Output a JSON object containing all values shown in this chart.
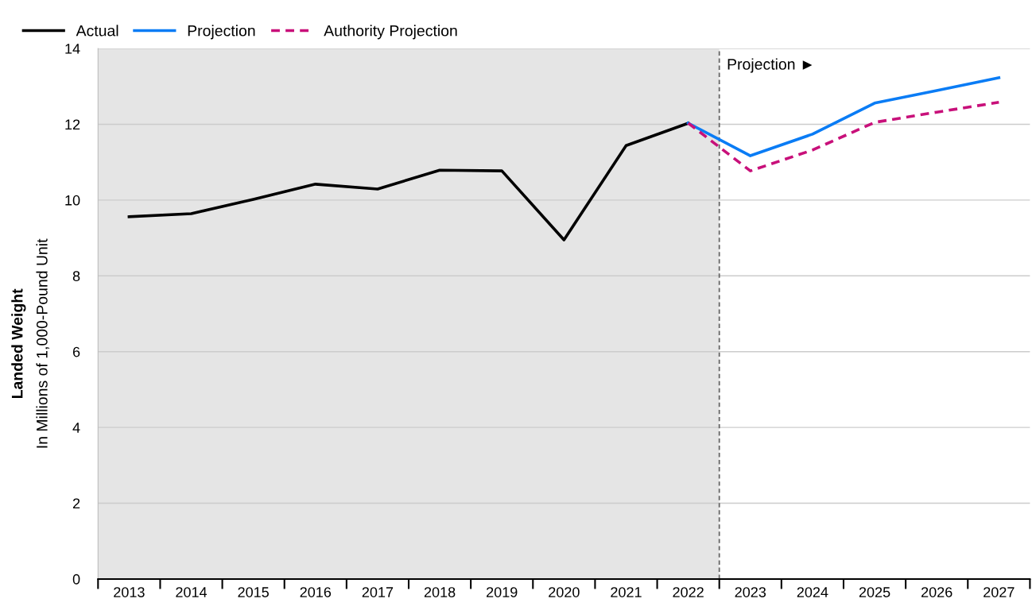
{
  "chart_data": {
    "type": "line",
    "ylabel": "Landed Weight\nIn Millions of 1,000-Pound Unit",
    "x": [
      2013,
      2014,
      2015,
      2016,
      2017,
      2018,
      2019,
      2020,
      2021,
      2022,
      2023,
      2024,
      2025,
      2026,
      2027
    ],
    "series": [
      {
        "name": "Actual",
        "color": "#000000",
        "values": [
          9.56,
          9.64,
          10.02,
          10.42,
          10.29,
          10.79,
          10.77,
          8.95,
          11.44,
          12.03,
          null,
          null,
          null,
          null,
          null
        ]
      },
      {
        "name": "Projection",
        "color": "#0a7cf5",
        "values": [
          null,
          null,
          null,
          null,
          null,
          null,
          null,
          null,
          null,
          12.03,
          11.17,
          11.74,
          12.56,
          12.89,
          13.23
        ]
      },
      {
        "name": "Authority Projection",
        "color": "#c8107a",
        "line_style": "dashed",
        "values": [
          null,
          null,
          null,
          null,
          null,
          null,
          null,
          null,
          null,
          12.03,
          10.77,
          11.32,
          12.05,
          12.32,
          12.58
        ]
      }
    ],
    "xlim": [
      2012.5,
      2027.5
    ],
    "xticks": [
      {
        "value": 2012.5,
        "label": null
      },
      2013,
      {
        "value": 2013.5,
        "label": null
      },
      2014,
      {
        "value": 2014.5,
        "label": null
      },
      2015,
      {
        "value": 2015.5,
        "label": null
      },
      2016,
      {
        "value": 2016.5,
        "label": null
      },
      2017,
      {
        "value": 2017.5,
        "label": null
      },
      2018,
      {
        "value": 2018.5,
        "label": null
      },
      2019,
      {
        "value": 2019.5,
        "label": null
      },
      2020,
      {
        "value": 2020.5,
        "label": null
      },
      2021,
      {
        "value": 2021.5,
        "label": null
      },
      2022,
      {
        "value": 2022.5,
        "label": null
      },
      2023,
      {
        "value": 2023.5,
        "label": null
      },
      2024,
      {
        "value": 2024.5,
        "label": null
      },
      2025,
      {
        "value": 2025.5,
        "label": null
      },
      2026,
      {
        "value": 2026.5,
        "label": null
      },
      2027,
      {
        "value": 2027.5,
        "label": null
      }
    ],
    "ylim": [
      0,
      14
    ],
    "yticks": [
      0,
      2,
      4,
      6,
      8,
      10,
      12,
      14
    ],
    "bands": [
      {
        "axis": "x",
        "from": 2012.5,
        "to": 2022.5,
        "color": "#e5e5e5"
      }
    ],
    "ref_lines": [
      {
        "axis": "x",
        "value": 2022.5,
        "color": "#666666",
        "line_style": "dashed"
      }
    ],
    "annotations": [
      "Projection ►"
    ],
    "grid": "y",
    "legend": "top left",
    "marker": "none",
    "line_style": "solid"
  }
}
